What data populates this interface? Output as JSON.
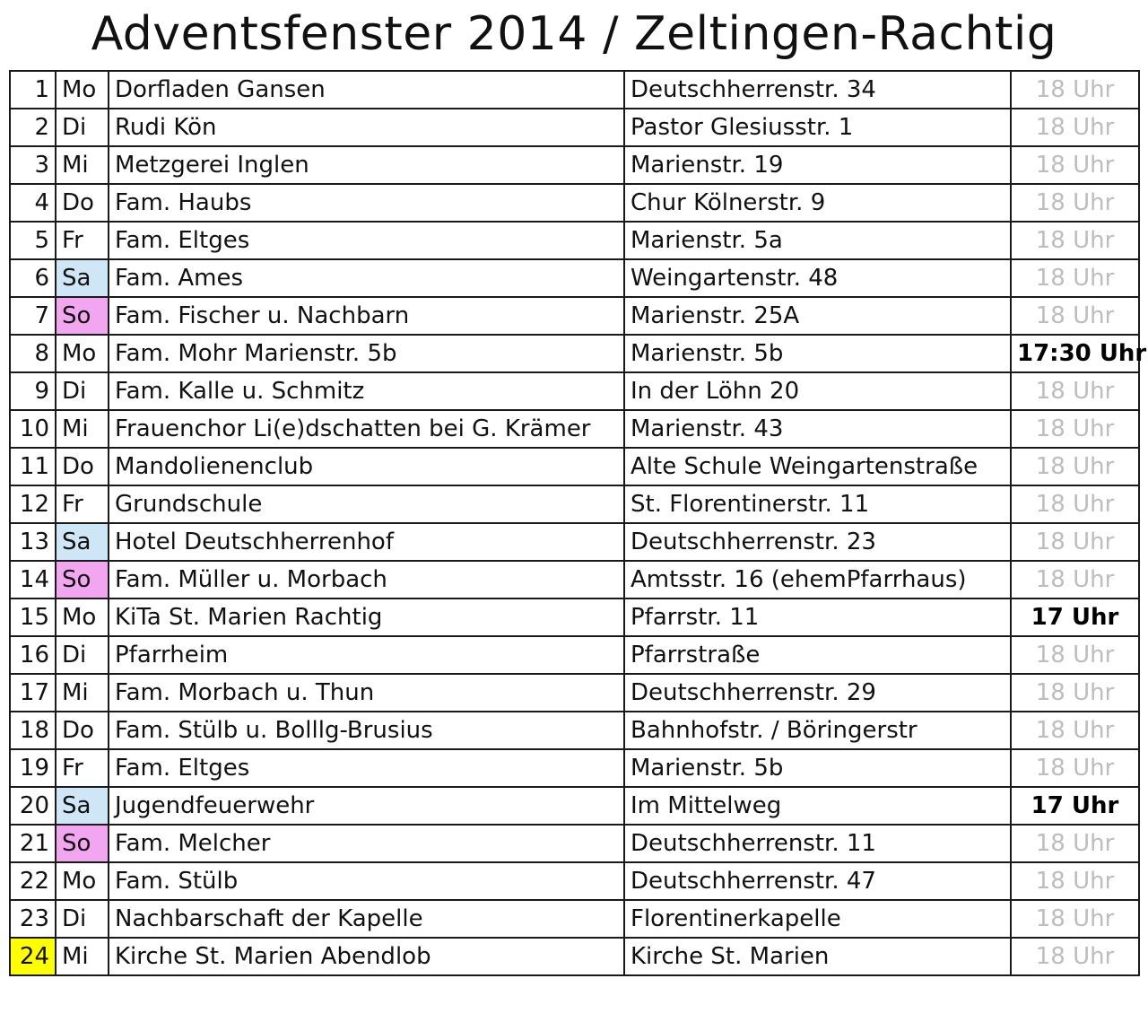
{
  "title": "Adventsfenster 2014 / Zeltingen-Rachtig",
  "colors": {
    "saturday": "#cfe6f6",
    "sunday": "#f1a6ef",
    "today": "#ffff00",
    "time_normal": "#bdbdbd",
    "time_highlight": "#000000"
  },
  "rows": [
    {
      "num": "1",
      "day": "Mo",
      "name": "Dorfladen Gansen",
      "address": "Deutschherrenstr. 34",
      "time": "18 Uhr"
    },
    {
      "num": "2",
      "day": "Di",
      "name": "Rudi Kön",
      "address": "Pastor Glesiusstr. 1",
      "time": "18 Uhr"
    },
    {
      "num": "3",
      "day": "Mi",
      "name": "Metzgerei Inglen",
      "address": "Marienstr. 19",
      "time": "18 Uhr"
    },
    {
      "num": "4",
      "day": "Do",
      "name": "Fam. Haubs",
      "address": "Chur Kölnerstr. 9",
      "time": "18 Uhr"
    },
    {
      "num": "5",
      "day": "Fr",
      "name": "Fam. Eltges",
      "address": "Marienstr. 5a",
      "time": "18 Uhr"
    },
    {
      "num": "6",
      "day": "Sa",
      "name": "Fam. Ames",
      "address": "Weingartenstr. 48",
      "time": "18 Uhr"
    },
    {
      "num": "7",
      "day": "So",
      "name": "Fam. Fischer u. Nachbarn",
      "address": "Marienstr. 25A",
      "time": "18 Uhr"
    },
    {
      "num": "8",
      "day": "Mo",
      "name": "Fam. Mohr Marienstr. 5b",
      "address": "Marienstr. 5b",
      "time": "17:30 Uhr",
      "highlight": true
    },
    {
      "num": "9",
      "day": "Di",
      "name": "Fam. Kalle u. Schmitz",
      "address": "In der Löhn 20",
      "time": "18 Uhr"
    },
    {
      "num": "10",
      "day": "Mi",
      "name": "Frauenchor Li(e)dschatten bei G. Krämer",
      "address": "Marienstr. 43",
      "time": "18 Uhr"
    },
    {
      "num": "11",
      "day": "Do",
      "name": "Mandolienenclub",
      "address": "Alte Schule Weingartenstraße",
      "time": "18 Uhr"
    },
    {
      "num": "12",
      "day": "Fr",
      "name": "Grundschule",
      "address": "St. Florentinerstr. 11",
      "time": "18 Uhr"
    },
    {
      "num": "13",
      "day": "Sa",
      "name": "Hotel Deutschherrenhof",
      "address": "Deutschherrenstr. 23",
      "time": "18 Uhr"
    },
    {
      "num": "14",
      "day": "So",
      "name": "Fam. Müller u. Morbach",
      "address": "Amtsstr. 16 (ehemPfarrhaus)",
      "time": "18 Uhr"
    },
    {
      "num": "15",
      "day": "Mo",
      "name": "KiTa St. Marien Rachtig",
      "address": "Pfarrstr. 11",
      "time": "17 Uhr",
      "highlight": true
    },
    {
      "num": "16",
      "day": "Di",
      "name": "Pfarrheim",
      "address": "Pfarrstraße",
      "time": "18 Uhr"
    },
    {
      "num": "17",
      "day": "Mi",
      "name": "Fam. Morbach u. Thun",
      "address": "Deutschherrenstr. 29",
      "time": "18 Uhr"
    },
    {
      "num": "18",
      "day": "Do",
      "name": "Fam. Stülb u. Bolllg-Brusius",
      "address": "Bahnhofstr. / Böringerstr",
      "time": "18 Uhr"
    },
    {
      "num": "19",
      "day": "Fr",
      "name": "Fam. Eltges",
      "address": "Marienstr. 5b",
      "time": "18 Uhr"
    },
    {
      "num": "20",
      "day": "Sa",
      "name": "Jugendfeuerwehr",
      "address": "Im Mittelweg",
      "time": "17 Uhr",
      "highlight": true
    },
    {
      "num": "21",
      "day": "So",
      "name": "Fam. Melcher",
      "address": "Deutschherrenstr. 11",
      "time": "18 Uhr"
    },
    {
      "num": "22",
      "day": "Mo",
      "name": "Fam. Stülb",
      "address": "Deutschherrenstr. 47",
      "time": "18 Uhr"
    },
    {
      "num": "23",
      "day": "Di",
      "name": "Nachbarschaft der Kapelle",
      "address": "Florentinerkapelle",
      "time": "18 Uhr"
    },
    {
      "num": "24",
      "day": "Mi",
      "name": "Kirche St. Marien Abendlob",
      "address": "Kirche St. Marien",
      "time": "18 Uhr",
      "today": true
    }
  ]
}
